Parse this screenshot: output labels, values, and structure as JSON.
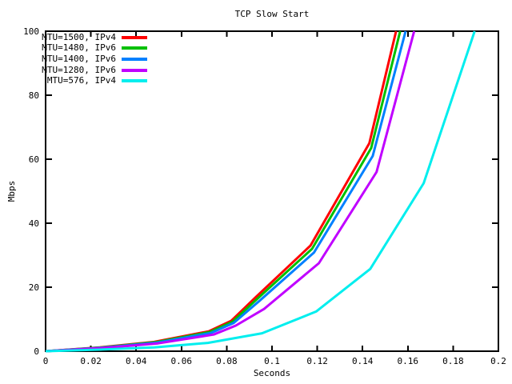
{
  "chart_data": {
    "type": "line",
    "title": "TCP Slow Start",
    "xlabel": "Seconds",
    "ylabel": "Mbps",
    "xlim": [
      0,
      0.2
    ],
    "ylim": [
      0,
      100
    ],
    "xticks": [
      0,
      0.02,
      0.04,
      0.06,
      0.08,
      0.1,
      0.12,
      0.14,
      0.16,
      0.18,
      0.2
    ],
    "yticks": [
      0,
      20,
      40,
      60,
      80,
      100
    ],
    "grid": false,
    "legend_position": "top-left-inside",
    "legend_border": false,
    "background_color": "#ffffff",
    "axis_color": "#000000",
    "series": [
      {
        "label": "MTU=1500, IPv4",
        "color": "#ff0000",
        "points": [
          [
            0,
            0
          ],
          [
            0.024,
            1.2
          ],
          [
            0.048,
            2.9
          ],
          [
            0.072,
            6.2
          ],
          [
            0.082,
            9.5
          ],
          [
            0.093,
            17
          ],
          [
            0.117,
            33
          ],
          [
            0.143,
            65
          ],
          [
            0.1548,
            100
          ]
        ]
      },
      {
        "label": "MTU=1480, IPv6",
        "color": "#00c000",
        "points": [
          [
            0,
            0
          ],
          [
            0.0245,
            1.15
          ],
          [
            0.0485,
            2.8
          ],
          [
            0.0725,
            6.0
          ],
          [
            0.0825,
            9.2
          ],
          [
            0.0937,
            16.5
          ],
          [
            0.1177,
            32
          ],
          [
            0.1438,
            63.5
          ],
          [
            0.1566,
            100
          ]
        ]
      },
      {
        "label": "MTU=1400, IPv6",
        "color": "#0080ff",
        "points": [
          [
            0,
            0
          ],
          [
            0.025,
            1.1
          ],
          [
            0.049,
            2.65
          ],
          [
            0.073,
            5.7
          ],
          [
            0.083,
            8.8
          ],
          [
            0.0944,
            15.7
          ],
          [
            0.1185,
            30.8
          ],
          [
            0.1445,
            61
          ],
          [
            0.159,
            100
          ]
        ]
      },
      {
        "label": "MTU=1280, IPv6",
        "color": "#c000ff",
        "points": [
          [
            0,
            0
          ],
          [
            0.0253,
            1.0
          ],
          [
            0.0497,
            2.45
          ],
          [
            0.0742,
            5.2
          ],
          [
            0.084,
            8.0
          ],
          [
            0.0965,
            13.2
          ],
          [
            0.1207,
            27.5
          ],
          [
            0.1462,
            56
          ],
          [
            0.1628,
            100
          ]
        ]
      },
      {
        "label": "MTU=576, IPv4",
        "color": "#00eeee",
        "points": [
          [
            0,
            0
          ],
          [
            0.024,
            0.5
          ],
          [
            0.048,
            1.2
          ],
          [
            0.0717,
            2.6
          ],
          [
            0.0956,
            5.6
          ],
          [
            0.1195,
            12.4
          ],
          [
            0.1434,
            25.7
          ],
          [
            0.167,
            52.5
          ],
          [
            0.1895,
            100
          ]
        ]
      }
    ]
  }
}
